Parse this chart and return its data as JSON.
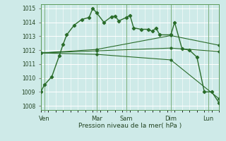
{
  "background_color": "#ceeae8",
  "grid_color": "#b0d8d4",
  "line_color": "#2a6c2a",
  "marker_color": "#2a6c2a",
  "ylabel_min": 1008,
  "ylabel_max": 1015,
  "x_day_labels": [
    "Ven",
    "Mar",
    "Sam",
    "Dim",
    "Lun"
  ],
  "x_day_positions": [
    0.5,
    7.5,
    11.5,
    17.5,
    22.5
  ],
  "x_vline_positions": [
    0.5,
    7.5,
    11.5,
    17.5,
    22.5
  ],
  "xlabel": "Pression niveau de la mer( hPa )",
  "series1_x": [
    0.0,
    0.5,
    1.5,
    2.5,
    3.0,
    3.5,
    4.5,
    5.5,
    6.5,
    7.0,
    7.5,
    8.5,
    9.5,
    10.0,
    10.5,
    11.5,
    12.0,
    12.5,
    13.5,
    14.5,
    15.0,
    15.5,
    16.0,
    17.5,
    18.0,
    19.0,
    20.0,
    21.0,
    22.0,
    23.0,
    24.0
  ],
  "series1_y": [
    1009.0,
    1009.5,
    1010.1,
    1011.6,
    1012.4,
    1013.1,
    1013.8,
    1014.2,
    1014.35,
    1015.0,
    1014.7,
    1014.0,
    1014.4,
    1014.45,
    1014.1,
    1014.35,
    1014.5,
    1013.6,
    1013.5,
    1013.5,
    1013.35,
    1013.6,
    1013.1,
    1013.1,
    1014.0,
    1012.1,
    1012.0,
    1011.5,
    1009.0,
    1009.0,
    1008.2
  ],
  "series2_x": [
    0.0,
    7.5,
    17.5,
    24.0
  ],
  "series2_y": [
    1011.8,
    1012.05,
    1013.05,
    1012.35
  ],
  "series3_x": [
    0.0,
    7.5,
    17.5,
    24.0
  ],
  "series3_y": [
    1011.8,
    1011.95,
    1012.15,
    1011.9
  ],
  "series4_x": [
    0.0,
    7.5,
    17.5,
    24.0
  ],
  "series4_y": [
    1011.8,
    1011.7,
    1011.3,
    1008.5
  ]
}
